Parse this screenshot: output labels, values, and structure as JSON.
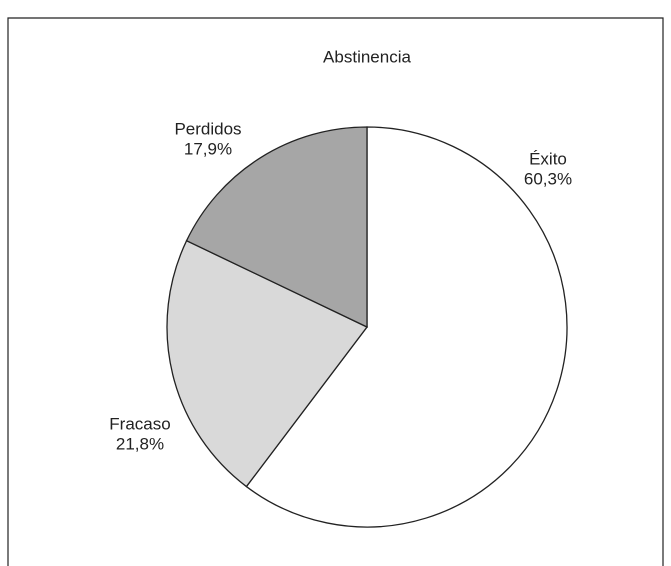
{
  "chart_data": {
    "type": "pie",
    "title": "Abstinencia",
    "categories": [
      "Éxito",
      "Fracaso",
      "Perdidos"
    ],
    "values": [
      60.3,
      21.8,
      17.9
    ],
    "value_labels": [
      "60,3%",
      "21,8%",
      "17,9%"
    ],
    "colors": [
      "#ffffff",
      "#d9d9d9",
      "#a6a6a6"
    ]
  }
}
